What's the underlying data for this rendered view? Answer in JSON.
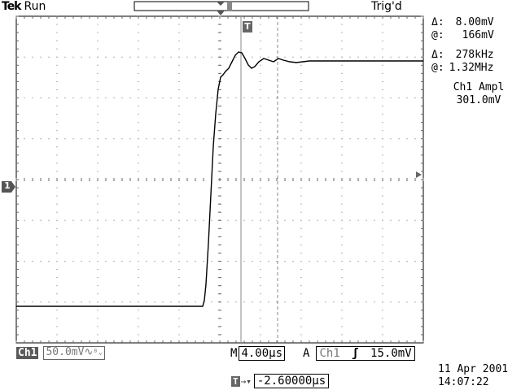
{
  "header": {
    "brand": "Tek",
    "run_state": "Run",
    "trigger_state": "Trig'd"
  },
  "cursor_readout": {
    "delta_label": "Δ:",
    "delta_voltage": "8.00mV",
    "at_label": "@:",
    "at_voltage": "166mV",
    "delta_freq_label": "Δ:",
    "delta_freq": "278kHz",
    "at_freq_label": "@:",
    "at_freq": "1.32MHz"
  },
  "measurement": {
    "label": "Ch1 Ampl",
    "value": "301.0mV"
  },
  "bottom_bar": {
    "channel_badge": "Ch1",
    "vertical_scale": "50.0mV",
    "coupling_symbol": "∿",
    "bandwidth_symbol": "ᴮᵥ",
    "timebase_prefix": "M",
    "timebase": "4.00µs",
    "trigger_mode": "A",
    "trigger_source": "Ch1",
    "trigger_slope_symbol": "ʃ",
    "trigger_level": "15.0mV"
  },
  "position_readout": {
    "marker": "T",
    "arrow": "→▾",
    "value": "-2.60000µs"
  },
  "datetime": {
    "date": "11 Apr 2001",
    "time": "14:07:22"
  },
  "channel_marker": "1",
  "trigger_marker": "T",
  "record_marker": "T"
}
